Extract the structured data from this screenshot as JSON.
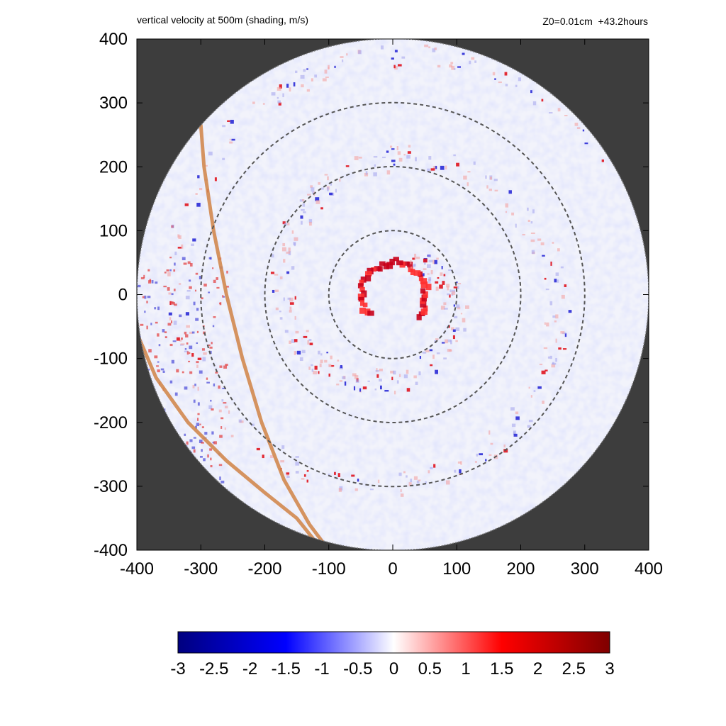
{
  "chart_data": {
    "type": "heatmap",
    "title": "vertical velocity at 500m (shading, m/s)",
    "subtitle": "Z0=0.01cm  +43.2hours",
    "xlim": [
      -400,
      400
    ],
    "ylim": [
      -400,
      400
    ],
    "x_ticks": [
      "-400",
      "-300",
      "-200",
      "-100",
      "0",
      "100",
      "200",
      "300",
      "400"
    ],
    "y_ticks": [
      "400",
      "300",
      "200",
      "100",
      "0",
      "-100",
      "-200",
      "-300",
      "-400"
    ],
    "x_tick_values": [
      -400,
      -300,
      -200,
      -100,
      0,
      100,
      200,
      300,
      400
    ],
    "y_tick_values": [
      400,
      300,
      200,
      100,
      0,
      -100,
      -200,
      -300,
      -400
    ],
    "domain_radius": 400,
    "range_rings": [
      100,
      200,
      300
    ],
    "coastlines": [
      [
        [
          -300,
          265
        ],
        [
          -295,
          200
        ],
        [
          -280,
          100
        ],
        [
          -260,
          0
        ],
        [
          -235,
          -100
        ],
        [
          -205,
          -200
        ],
        [
          -170,
          -290
        ],
        [
          -130,
          -360
        ],
        [
          -100,
          -400
        ]
      ],
      [
        [
          -400,
          -60
        ],
        [
          -370,
          -130
        ],
        [
          -320,
          -200
        ],
        [
          -260,
          -260
        ],
        [
          -200,
          -310
        ],
        [
          -150,
          -350
        ],
        [
          -110,
          -400
        ]
      ]
    ],
    "colorbar": {
      "min": -3,
      "max": 3,
      "tick_labels": [
        "-3",
        "-2.5",
        "-2",
        "-1.5",
        "-1",
        "-0.5",
        "0",
        "0.5",
        "1",
        "1.5",
        "2",
        "2.5",
        "3"
      ],
      "tick_values": [
        -3,
        -2.5,
        -2,
        -1.5,
        -1,
        -0.5,
        0,
        0.5,
        1,
        1.5,
        2,
        2.5,
        3
      ],
      "colormap": [
        "#00007f",
        "#0000ff",
        "#ffffff",
        "#ff0000",
        "#7f0000"
      ]
    },
    "colors": {
      "outside_domain": "#3d3d3d",
      "ring": "#555555",
      "coastline": "#d2884f"
    }
  }
}
